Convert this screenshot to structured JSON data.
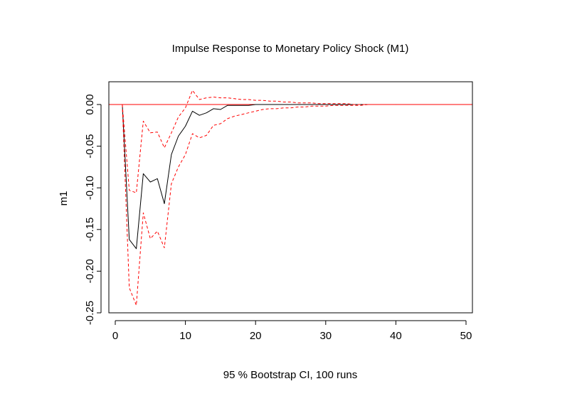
{
  "chart_data": {
    "type": "line",
    "title": "Impulse Response to Monetary Policy Shock (M1)",
    "xlabel": "95 % Bootstrap CI,  100 runs",
    "ylabel": "m1",
    "xlim": [
      0,
      50
    ],
    "ylim": [
      -0.25,
      0.02
    ],
    "x_ticks": [
      "0",
      "10",
      "20",
      "30",
      "40",
      "50"
    ],
    "y_ticks": [
      "0.00",
      "-0.05",
      "-0.10",
      "-0.15",
      "-0.20",
      "-0.25"
    ],
    "hline": 0,
    "colors": {
      "response": "#000000",
      "bands": "#ff0000",
      "zero_line": "#ff0000"
    },
    "x": [
      1,
      2,
      3,
      4,
      5,
      6,
      7,
      8,
      9,
      10,
      11,
      12,
      13,
      14,
      15,
      16,
      17,
      18,
      19,
      20,
      21,
      22,
      23,
      24,
      25,
      26,
      27,
      28,
      29,
      30,
      31,
      32,
      33,
      34,
      35,
      36,
      37,
      38,
      39,
      40
    ],
    "series": [
      {
        "style": "solid",
        "values": [
          0.0,
          -0.162,
          -0.173,
          -0.083,
          -0.093,
          -0.089,
          -0.119,
          -0.06,
          -0.038,
          -0.026,
          -0.008,
          -0.013,
          -0.01,
          -0.005,
          -0.006,
          -0.001,
          -0.001,
          -0.001,
          -0.001,
          0.0,
          0.0,
          0.0,
          0.0,
          0.0,
          0.0,
          0.0,
          0.0,
          0.0,
          0.0,
          0.0,
          0.0,
          0.0,
          0.0,
          0.0,
          0.0,
          0.0,
          0.0,
          0.0,
          0.0,
          0.0
        ]
      },
      {
        "style": "dashed",
        "values": [
          0.0,
          -0.103,
          -0.106,
          -0.02,
          -0.034,
          -0.033,
          -0.052,
          -0.034,
          -0.015,
          -0.004,
          0.017,
          0.006,
          0.008,
          0.009,
          0.008,
          0.008,
          0.007,
          0.006,
          0.006,
          0.005,
          0.005,
          0.004,
          0.004,
          0.003,
          0.003,
          0.002,
          0.002,
          0.002,
          0.001,
          0.001,
          0.001,
          0.001,
          0.001,
          0.0,
          0.0,
          0.0,
          0.0,
          0.0,
          0.0,
          0.0
        ]
      },
      {
        "style": "dashed",
        "values": [
          0.0,
          -0.22,
          -0.241,
          -0.13,
          -0.161,
          -0.152,
          -0.172,
          -0.095,
          -0.075,
          -0.06,
          -0.035,
          -0.04,
          -0.037,
          -0.025,
          -0.023,
          -0.017,
          -0.014,
          -0.012,
          -0.01,
          -0.008,
          -0.006,
          -0.005,
          -0.005,
          -0.004,
          -0.004,
          -0.003,
          -0.003,
          -0.002,
          -0.002,
          -0.002,
          -0.001,
          -0.001,
          -0.001,
          -0.001,
          -0.001,
          0.0,
          0.0,
          0.0,
          0.0,
          0.0
        ]
      }
    ]
  }
}
